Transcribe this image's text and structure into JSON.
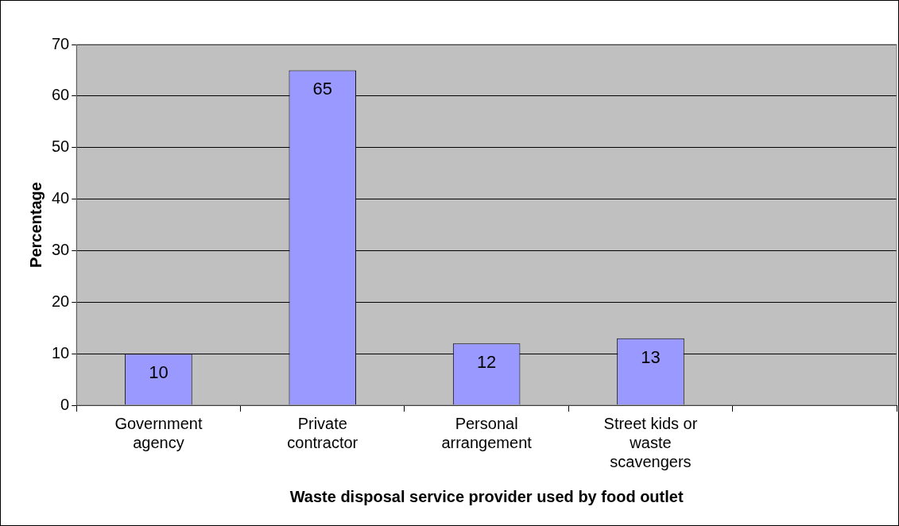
{
  "chart_data": {
    "type": "bar",
    "xlabel": "Waste disposal service provider used by food outlet",
    "ylabel": "Percentage",
    "categories": [
      "Government agency",
      "Private contractor",
      "Personal arrangement",
      "Street kids or waste scavengers",
      null
    ],
    "values": [
      10,
      65,
      12,
      13,
      null
    ],
    "color": "#9999ff",
    "ylim": [
      0,
      70
    ],
    "yticks": [
      0,
      10,
      20,
      30,
      40,
      50,
      60,
      70
    ],
    "grid": "y",
    "data_labels": true,
    "legend": false
  }
}
